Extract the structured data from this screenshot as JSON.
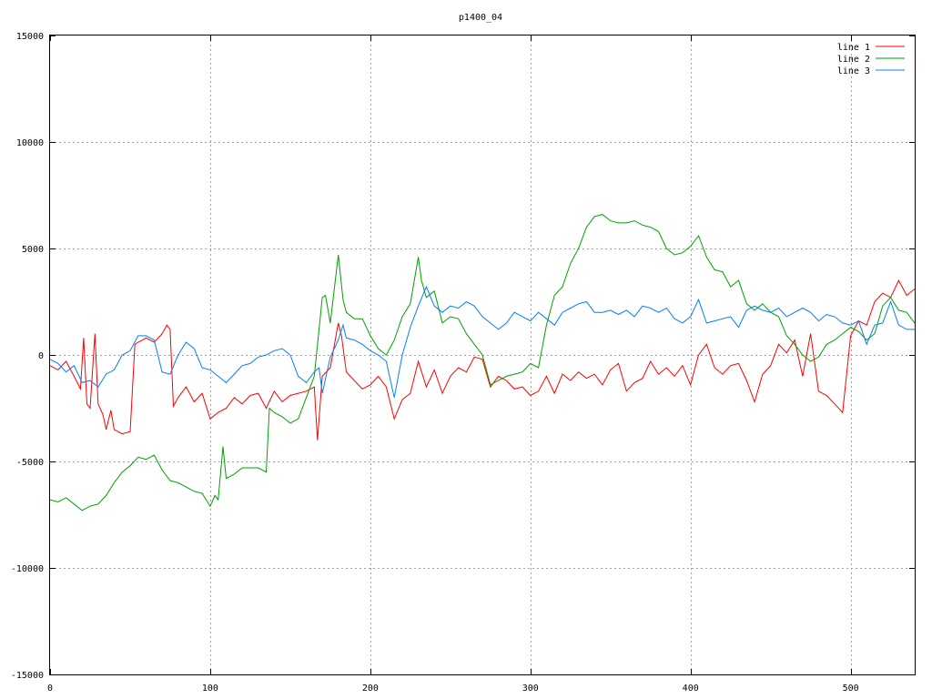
{
  "chart_data": {
    "type": "line",
    "title": "p1400_04",
    "xlabel": "",
    "ylabel": "",
    "xlim": [
      0,
      540
    ],
    "ylim": [
      -15000,
      15000
    ],
    "x_ticks": [
      0,
      100,
      200,
      300,
      400,
      500
    ],
    "y_ticks": [
      -15000,
      -10000,
      -5000,
      0,
      5000,
      10000,
      15000
    ],
    "grid": true,
    "legend_position": "top-right",
    "series": [
      {
        "name": "line 1",
        "color": "#ff0000",
        "x": [
          0,
          5,
          10,
          15,
          19,
          21,
          23,
          25,
          28,
          30,
          33,
          35,
          38,
          40,
          45,
          50,
          53,
          55,
          60,
          65,
          70,
          73,
          75,
          77,
          80,
          85,
          90,
          95,
          100,
          105,
          110,
          115,
          120,
          125,
          130,
          135,
          140,
          145,
          150,
          155,
          160,
          165,
          167,
          170,
          175,
          180,
          182,
          185,
          190,
          195,
          200,
          205,
          210,
          215,
          220,
          225,
          230,
          235,
          240,
          245,
          250,
          255,
          260,
          265,
          270,
          275,
          280,
          285,
          290,
          295,
          300,
          305,
          310,
          315,
          320,
          325,
          330,
          335,
          340,
          345,
          350,
          355,
          360,
          365,
          370,
          375,
          380,
          385,
          390,
          395,
          400,
          405,
          410,
          415,
          420,
          425,
          430,
          435,
          440,
          445,
          450,
          455,
          460,
          465,
          470,
          475,
          480,
          485,
          490,
          495,
          500,
          505,
          510,
          515,
          520,
          525,
          530,
          535,
          540
        ],
        "y": [
          -500,
          -700,
          -300,
          -1000,
          -1600,
          800,
          -2300,
          -2500,
          1000,
          -2300,
          -2800,
          -3500,
          -2600,
          -3500,
          -3700,
          -3600,
          500,
          600,
          800,
          600,
          1000,
          1400,
          1200,
          -2400,
          -2000,
          -1500,
          -2200,
          -1800,
          -3000,
          -2700,
          -2500,
          -2000,
          -2300,
          -1900,
          -1800,
          -2500,
          -1700,
          -2200,
          -1900,
          -1800,
          -1700,
          -1500,
          -4000,
          -1000,
          -600,
          1500,
          900,
          -800,
          -1200,
          -1600,
          -1400,
          -1000,
          -1500,
          -3000,
          -2100,
          -1800,
          -300,
          -1500,
          -700,
          -1800,
          -1000,
          -600,
          -800,
          -100,
          -200,
          -1500,
          -1000,
          -1200,
          -1600,
          -1500,
          -1900,
          -1700,
          -1000,
          -1800,
          -900,
          -1200,
          -800,
          -1100,
          -900,
          -1400,
          -700,
          -400,
          -1700,
          -1300,
          -1100,
          -300,
          -900,
          -600,
          -1000,
          -500,
          -1400,
          0,
          500,
          -600,
          -900,
          -500,
          -400,
          -1200,
          -2200,
          -900,
          -500,
          500,
          100,
          700,
          -1000,
          1000,
          -1700,
          -1900,
          -2300,
          -2700,
          900,
          1600,
          1400,
          2500,
          2900,
          2700,
          3500,
          2800,
          3100
        ]
      },
      {
        "name": "line 2",
        "color": "#00a000",
        "x": [
          0,
          5,
          10,
          15,
          20,
          25,
          30,
          35,
          40,
          45,
          50,
          55,
          60,
          65,
          70,
          75,
          80,
          85,
          90,
          95,
          100,
          103,
          105,
          108,
          110,
          115,
          120,
          125,
          130,
          135,
          137,
          140,
          145,
          150,
          155,
          160,
          165,
          170,
          172,
          175,
          180,
          183,
          185,
          190,
          195,
          200,
          205,
          210,
          215,
          220,
          225,
          230,
          232,
          235,
          240,
          245,
          250,
          255,
          260,
          265,
          270,
          275,
          280,
          285,
          290,
          295,
          300,
          305,
          310,
          315,
          320,
          325,
          330,
          335,
          340,
          345,
          350,
          355,
          360,
          365,
          370,
          375,
          380,
          385,
          390,
          395,
          400,
          405,
          410,
          415,
          420,
          425,
          430,
          435,
          440,
          445,
          450,
          455,
          460,
          465,
          470,
          475,
          480,
          485,
          490,
          495,
          500,
          505,
          510,
          515,
          520,
          525,
          530,
          535,
          540
        ],
        "y": [
          -6800,
          -6900,
          -6700,
          -7000,
          -7300,
          -7100,
          -7000,
          -6600,
          -6000,
          -5500,
          -5200,
          -4800,
          -4900,
          -4700,
          -5400,
          -5900,
          -6000,
          -6200,
          -6400,
          -6500,
          -7100,
          -6600,
          -6800,
          -4300,
          -5800,
          -5600,
          -5300,
          -5300,
          -5300,
          -5500,
          -2500,
          -2700,
          -2900,
          -3200,
          -3000,
          -2000,
          -1000,
          2700,
          2800,
          1500,
          4700,
          2600,
          2000,
          1700,
          1700,
          900,
          300,
          0,
          700,
          1800,
          2400,
          4600,
          3500,
          2700,
          3000,
          1500,
          1800,
          1700,
          1000,
          500,
          0,
          -1400,
          -1200,
          -1000,
          -900,
          -800,
          -400,
          -600,
          1400,
          2800,
          3200,
          4300,
          5000,
          6000,
          6500,
          6600,
          6300,
          6200,
          6200,
          6300,
          6100,
          6000,
          5800,
          5000,
          4700,
          4800,
          5100,
          5600,
          4600,
          4000,
          3900,
          3200,
          3500,
          2400,
          2100,
          2400,
          2000,
          1800,
          900,
          500,
          0,
          -300,
          -100,
          500,
          700,
          1000,
          1300,
          1100,
          700,
          1000,
          2300,
          2700,
          2100,
          2000,
          1500
        ]
      },
      {
        "name": "line 3",
        "color": "#0080ff",
        "x": [
          0,
          5,
          10,
          15,
          20,
          25,
          30,
          35,
          40,
          45,
          50,
          55,
          60,
          65,
          70,
          75,
          80,
          85,
          90,
          95,
          100,
          105,
          110,
          115,
          120,
          125,
          130,
          135,
          140,
          145,
          150,
          155,
          160,
          165,
          168,
          170,
          175,
          180,
          183,
          185,
          190,
          195,
          200,
          205,
          210,
          215,
          220,
          225,
          230,
          235,
          240,
          245,
          250,
          255,
          260,
          265,
          270,
          275,
          280,
          285,
          290,
          295,
          300,
          305,
          310,
          315,
          320,
          325,
          330,
          335,
          340,
          345,
          350,
          355,
          360,
          365,
          370,
          375,
          380,
          385,
          390,
          395,
          400,
          405,
          410,
          415,
          420,
          425,
          430,
          435,
          440,
          445,
          450,
          455,
          460,
          465,
          470,
          475,
          480,
          485,
          490,
          495,
          500,
          505,
          510,
          515,
          520,
          525,
          530,
          535,
          540
        ],
        "y": [
          -200,
          -400,
          -800,
          -500,
          -1300,
          -1200,
          -1500,
          -900,
          -700,
          0,
          200,
          900,
          900,
          700,
          -800,
          -900,
          0,
          600,
          300,
          -600,
          -700,
          -1000,
          -1300,
          -900,
          -500,
          -400,
          -100,
          0,
          200,
          300,
          0,
          -1000,
          -1300,
          -800,
          -600,
          -1800,
          -100,
          700,
          1400,
          800,
          700,
          500,
          200,
          0,
          -300,
          -2000,
          0,
          1300,
          2300,
          3200,
          2300,
          2000,
          2300,
          2200,
          2500,
          2300,
          1800,
          1500,
          1200,
          1500,
          2000,
          1800,
          1600,
          2000,
          1700,
          1400,
          2000,
          2200,
          2400,
          2500,
          2000,
          2000,
          2100,
          1900,
          2100,
          1800,
          2300,
          2200,
          2000,
          2200,
          1700,
          1500,
          1800,
          2600,
          1500,
          1600,
          1700,
          1800,
          1300,
          2100,
          2300,
          2100,
          2000,
          2200,
          1800,
          2000,
          2200,
          2000,
          1600,
          1900,
          1800,
          1500,
          1400,
          1600,
          500,
          1400,
          1500,
          2500,
          1400,
          1200,
          1200
        ]
      }
    ]
  }
}
